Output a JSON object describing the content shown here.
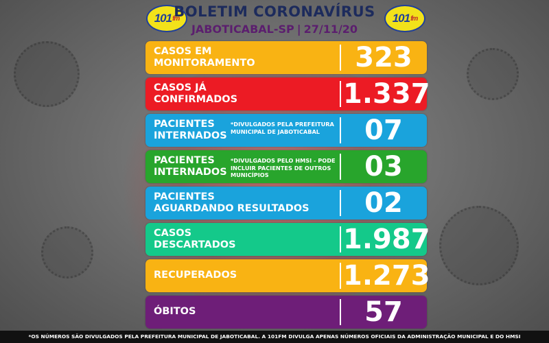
{
  "header": {
    "logo_text": "101",
    "logo_suffix": "fm",
    "title": "BOLETIM CORONAVÍRUS",
    "city": "JABOTICABAL-SP",
    "separator": "|",
    "date": "27/11/20"
  },
  "panels": [
    {
      "label_line1": "CASOS EM",
      "label_line2": "MONITORAMENTO",
      "note": "",
      "value": "323",
      "color": "#f9b313"
    },
    {
      "label_line1": "CASOS JÁ",
      "label_line2": "CONFIRMADOS",
      "note": "",
      "value": "1.337",
      "color": "#ec1b24"
    },
    {
      "label_line1": "PACIENTES",
      "label_line2": "INTERNADOS",
      "note": "*DIVULGADOS PELA PREFEITURA MUNICIPAL DE JABOTICABAL",
      "value": "07",
      "color": "#1aa3dc"
    },
    {
      "label_line1": "PACIENTES",
      "label_line2": "INTERNADOS",
      "note": "*DIVULGADOS PELO HMSI - PODE INCLUIR PACIENTES DE OUTROS MUNICÍPIOS",
      "value": "03",
      "color": "#28a52c"
    },
    {
      "label_line1": "PACIENTES",
      "label_line2": "AGUARDANDO RESULTADOS",
      "note": "",
      "value": "02",
      "color": "#1aa3dc"
    },
    {
      "label_line1": "CASOS",
      "label_line2": "DESCARTADOS",
      "note": "",
      "value": "1.987",
      "color": "#14c98a"
    },
    {
      "label_line1": "RECUPERADOS",
      "label_line2": "",
      "note": "",
      "value": "1.273",
      "color": "#f9b313"
    },
    {
      "label_line1": "ÓBITOS",
      "label_line2": "",
      "note": "",
      "value": "57",
      "color": "#6e1e78"
    }
  ],
  "footer": {
    "text": "*OS NÚMEROS SÃO DIVULGADOS PELA PREFEITURA MUNICIPAL DE JABOTICABAL. A 101FM DIVULGA APENAS NÚMEROS OFICIAIS DA ADMINISTRAÇÃO MUNICIPAL E DO HMSI"
  }
}
